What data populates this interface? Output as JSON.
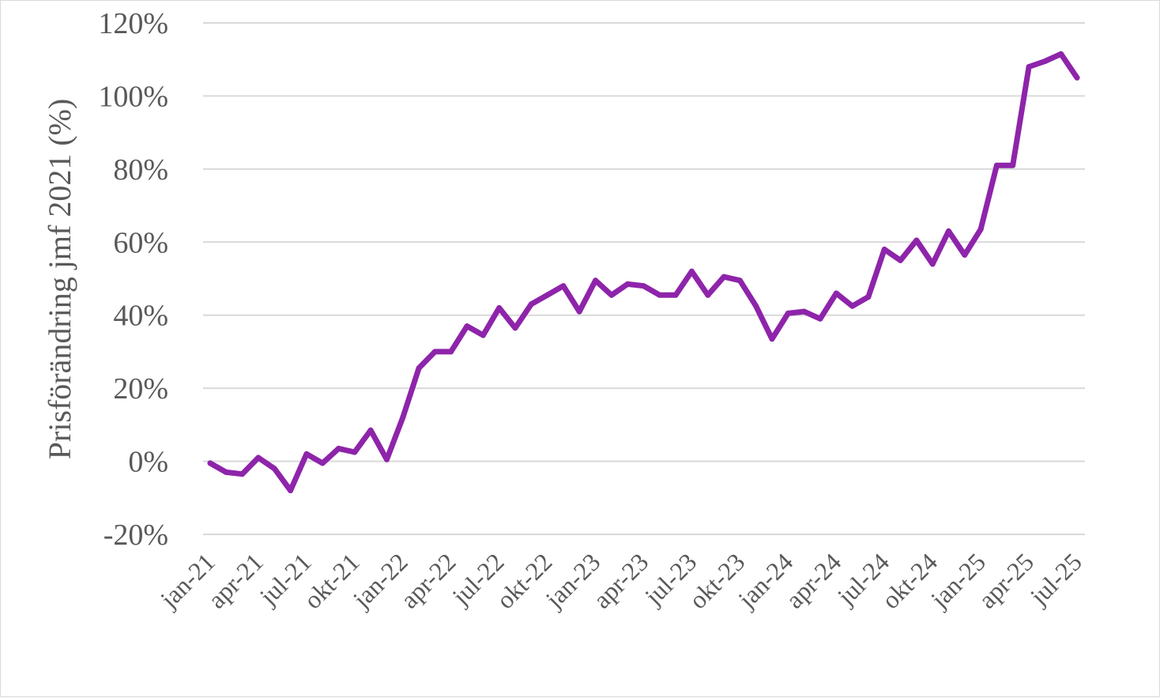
{
  "chart_data": {
    "type": "line",
    "ylabel": "Prisförändring jmf 2021 (%)",
    "xlabel": "",
    "ylim": [
      -20,
      120
    ],
    "y_ticks": [
      "-20%",
      "0%",
      "20%",
      "40%",
      "60%",
      "80%",
      "100%",
      "120%"
    ],
    "y_tick_values": [
      -20,
      0,
      20,
      40,
      60,
      80,
      100,
      120
    ],
    "grid": true,
    "legend": "none",
    "x_tick_labels": [
      "jan-21",
      "apr-21",
      "jul-21",
      "okt-21",
      "jan-22",
      "apr-22",
      "jul-22",
      "okt-22",
      "jan-23",
      "apr-23",
      "jul-23",
      "okt-23",
      "jan-24",
      "apr-24",
      "jul-24",
      "okt-24",
      "jan-25",
      "apr-25",
      "jul-25"
    ],
    "x": [
      "jan-21",
      "feb-21",
      "mar-21",
      "apr-21",
      "maj-21",
      "jun-21",
      "jul-21",
      "aug-21",
      "sep-21",
      "okt-21",
      "nov-21",
      "dec-21",
      "jan-22",
      "feb-22",
      "mar-22",
      "apr-22",
      "maj-22",
      "jun-22",
      "jul-22",
      "aug-22",
      "sep-22",
      "okt-22",
      "nov-22",
      "dec-22",
      "jan-23",
      "feb-23",
      "mar-23",
      "apr-23",
      "maj-23",
      "jun-23",
      "jul-23",
      "aug-23",
      "sep-23",
      "okt-23",
      "nov-23",
      "dec-23",
      "jan-24",
      "feb-24",
      "mar-24",
      "apr-24",
      "maj-24",
      "jun-24",
      "jul-24",
      "aug-24",
      "sep-24",
      "okt-24",
      "nov-24",
      "dec-24",
      "jan-25",
      "feb-25",
      "mar-25",
      "apr-25",
      "maj-25",
      "jun-25",
      "jul-25"
    ],
    "series": [
      {
        "color": "#8e24aa",
        "values": [
          -0.5,
          -3,
          -3.5,
          1,
          -2,
          -8,
          2,
          -0.5,
          3.5,
          2.5,
          8.5,
          0.5,
          12,
          25.5,
          30,
          30,
          37,
          34.5,
          42,
          36.5,
          43,
          45.5,
          48,
          41,
          49.5,
          45.5,
          48.5,
          48,
          45.5,
          45.5,
          52,
          45.5,
          50.5,
          49.5,
          42.5,
          33.5,
          40.5,
          41,
          39,
          46,
          42.5,
          45,
          58,
          55,
          60.5,
          54,
          63,
          56.5,
          63.5,
          81,
          81,
          108,
          109.5,
          111.5,
          105
        ]
      }
    ]
  }
}
